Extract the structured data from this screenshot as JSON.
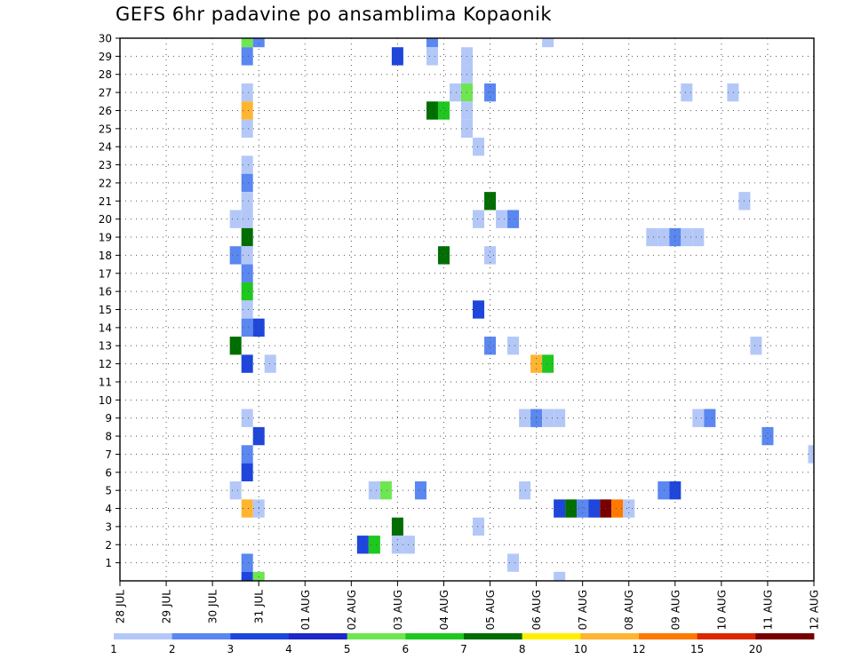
{
  "chart_data": {
    "type": "heatmap",
    "title": "GEFS 6hr padavine po ansamblima Kopaonik",
    "x_tick_labels": [
      "28 JUL",
      "29 JUL",
      "30 JUL",
      "31 JUL",
      "01 AUG",
      "02 AUG",
      "03 AUG",
      "04 AUG",
      "05 AUG",
      "06 AUG",
      "07 AUG",
      "08 AUG",
      "09 AUG",
      "10 AUG",
      "11 AUG",
      "12 AUG"
    ],
    "y_tick_labels": [
      "1",
      "2",
      "3",
      "4",
      "5",
      "6",
      "7",
      "8",
      "9",
      "10",
      "11",
      "12",
      "13",
      "14",
      "15",
      "16",
      "17",
      "18",
      "19",
      "20",
      "21",
      "22",
      "23",
      "24",
      "25",
      "26",
      "27",
      "28",
      "29",
      "30"
    ],
    "xlim": [
      0,
      60
    ],
    "ylim": [
      0,
      30
    ],
    "steps_per_day": 4,
    "grid": true,
    "legend_placement": "bottom",
    "legend": {
      "labels": [
        "1",
        "2",
        "3",
        "4",
        "5",
        "6",
        "7",
        "8",
        "10",
        "12",
        "15",
        "20"
      ],
      "colors": [
        "#b4c8f8",
        "#5a87f0",
        "#1e46dc",
        "#1e28c8",
        "#6ee650",
        "#1ec81e",
        "#006e00",
        "#fff000",
        "#ffb432",
        "#ff7800",
        "#dc2800",
        "#780000"
      ]
    },
    "cells": [
      {
        "member": 30,
        "step": 11,
        "value": 5
      },
      {
        "member": 30,
        "step": 12,
        "value": 2
      },
      {
        "member": 30,
        "step": 27,
        "value": 2
      },
      {
        "member": 30,
        "step": 37,
        "value": 1
      },
      {
        "member": 29,
        "step": 11,
        "value": 2
      },
      {
        "member": 29,
        "step": 24,
        "value": 3
      },
      {
        "member": 29,
        "step": 27,
        "value": 1
      },
      {
        "member": 29,
        "step": 30,
        "value": 1
      },
      {
        "member": 28,
        "step": 30,
        "value": 1
      },
      {
        "member": 27,
        "step": 11,
        "value": 1
      },
      {
        "member": 27,
        "step": 29,
        "value": 1
      },
      {
        "member": 27,
        "step": 30,
        "value": 5
      },
      {
        "member": 27,
        "step": 32,
        "value": 2
      },
      {
        "member": 27,
        "step": 49,
        "value": 1
      },
      {
        "member": 27,
        "step": 53,
        "value": 1
      },
      {
        "member": 26,
        "step": 11,
        "value": 10
      },
      {
        "member": 26,
        "step": 27,
        "value": 7
      },
      {
        "member": 26,
        "step": 28,
        "value": 6
      },
      {
        "member": 26,
        "step": 30,
        "value": 1
      },
      {
        "member": 25,
        "step": 11,
        "value": 1
      },
      {
        "member": 25,
        "step": 30,
        "value": 1
      },
      {
        "member": 24,
        "step": 31,
        "value": 1
      },
      {
        "member": 23,
        "step": 11,
        "value": 1
      },
      {
        "member": 22,
        "step": 11,
        "value": 2
      },
      {
        "member": 21,
        "step": 11,
        "value": 1
      },
      {
        "member": 21,
        "step": 32,
        "value": 7
      },
      {
        "member": 21,
        "step": 54,
        "value": 1
      },
      {
        "member": 20,
        "step": 10,
        "value": 1
      },
      {
        "member": 20,
        "step": 11,
        "value": 1
      },
      {
        "member": 20,
        "step": 31,
        "value": 1
      },
      {
        "member": 20,
        "step": 33,
        "value": 1
      },
      {
        "member": 20,
        "step": 34,
        "value": 2
      },
      {
        "member": 19,
        "step": 11,
        "value": 7
      },
      {
        "member": 19,
        "step": 46,
        "value": 1
      },
      {
        "member": 19,
        "step": 47,
        "value": 1
      },
      {
        "member": 19,
        "step": 48,
        "value": 2
      },
      {
        "member": 19,
        "step": 49,
        "value": 1
      },
      {
        "member": 19,
        "step": 50,
        "value": 1
      },
      {
        "member": 18,
        "step": 10,
        "value": 2
      },
      {
        "member": 18,
        "step": 11,
        "value": 1
      },
      {
        "member": 18,
        "step": 28,
        "value": 7
      },
      {
        "member": 18,
        "step": 32,
        "value": 1
      },
      {
        "member": 17,
        "step": 11,
        "value": 2
      },
      {
        "member": 16,
        "step": 11,
        "value": 6
      },
      {
        "member": 15,
        "step": 11,
        "value": 1
      },
      {
        "member": 15,
        "step": 31,
        "value": 3
      },
      {
        "member": 14,
        "step": 11,
        "value": 2
      },
      {
        "member": 14,
        "step": 12,
        "value": 3
      },
      {
        "member": 13,
        "step": 10,
        "value": 7
      },
      {
        "member": 13,
        "step": 32,
        "value": 2
      },
      {
        "member": 13,
        "step": 34,
        "value": 1
      },
      {
        "member": 13,
        "step": 55,
        "value": 1
      },
      {
        "member": 12,
        "step": 11,
        "value": 3
      },
      {
        "member": 12,
        "step": 13,
        "value": 1
      },
      {
        "member": 12,
        "step": 36,
        "value": 10
      },
      {
        "member": 12,
        "step": 37,
        "value": 6
      },
      {
        "member": 9,
        "step": 11,
        "value": 1
      },
      {
        "member": 9,
        "step": 35,
        "value": 1
      },
      {
        "member": 9,
        "step": 36,
        "value": 2
      },
      {
        "member": 9,
        "step": 37,
        "value": 1
      },
      {
        "member": 9,
        "step": 38,
        "value": 1
      },
      {
        "member": 9,
        "step": 50,
        "value": 1
      },
      {
        "member": 9,
        "step": 51,
        "value": 2
      },
      {
        "member": 8,
        "step": 12,
        "value": 3
      },
      {
        "member": 8,
        "step": 56,
        "value": 2
      },
      {
        "member": 7,
        "step": 11,
        "value": 2
      },
      {
        "member": 7,
        "step": 60,
        "value": 1
      },
      {
        "member": 6,
        "step": 11,
        "value": 3
      },
      {
        "member": 5,
        "step": 10,
        "value": 1
      },
      {
        "member": 5,
        "step": 22,
        "value": 1
      },
      {
        "member": 5,
        "step": 23,
        "value": 5
      },
      {
        "member": 5,
        "step": 26,
        "value": 2
      },
      {
        "member": 5,
        "step": 35,
        "value": 1
      },
      {
        "member": 5,
        "step": 47,
        "value": 2
      },
      {
        "member": 5,
        "step": 48,
        "value": 3
      },
      {
        "member": 4,
        "step": 11,
        "value": 10
      },
      {
        "member": 4,
        "step": 12,
        "value": 1
      },
      {
        "member": 4,
        "step": 38,
        "value": 3
      },
      {
        "member": 4,
        "step": 39,
        "value": 7
      },
      {
        "member": 4,
        "step": 40,
        "value": 2
      },
      {
        "member": 4,
        "step": 41,
        "value": 3
      },
      {
        "member": 4,
        "step": 42,
        "value": 20
      },
      {
        "member": 4,
        "step": 43,
        "value": 12
      },
      {
        "member": 4,
        "step": 44,
        "value": 1
      },
      {
        "member": 3,
        "step": 24,
        "value": 7
      },
      {
        "member": 3,
        "step": 31,
        "value": 1
      },
      {
        "member": 2,
        "step": 21,
        "value": 3
      },
      {
        "member": 2,
        "step": 22,
        "value": 6
      },
      {
        "member": 2,
        "step": 24,
        "value": 1
      },
      {
        "member": 2,
        "step": 25,
        "value": 1
      },
      {
        "member": 1,
        "step": 11,
        "value": 2
      },
      {
        "member": 1,
        "step": 34,
        "value": 1
      },
      {
        "member": 0,
        "step": 11,
        "value": 3
      },
      {
        "member": 0,
        "step": 12,
        "value": 5
      },
      {
        "member": 0,
        "step": 38,
        "value": 1
      }
    ]
  }
}
